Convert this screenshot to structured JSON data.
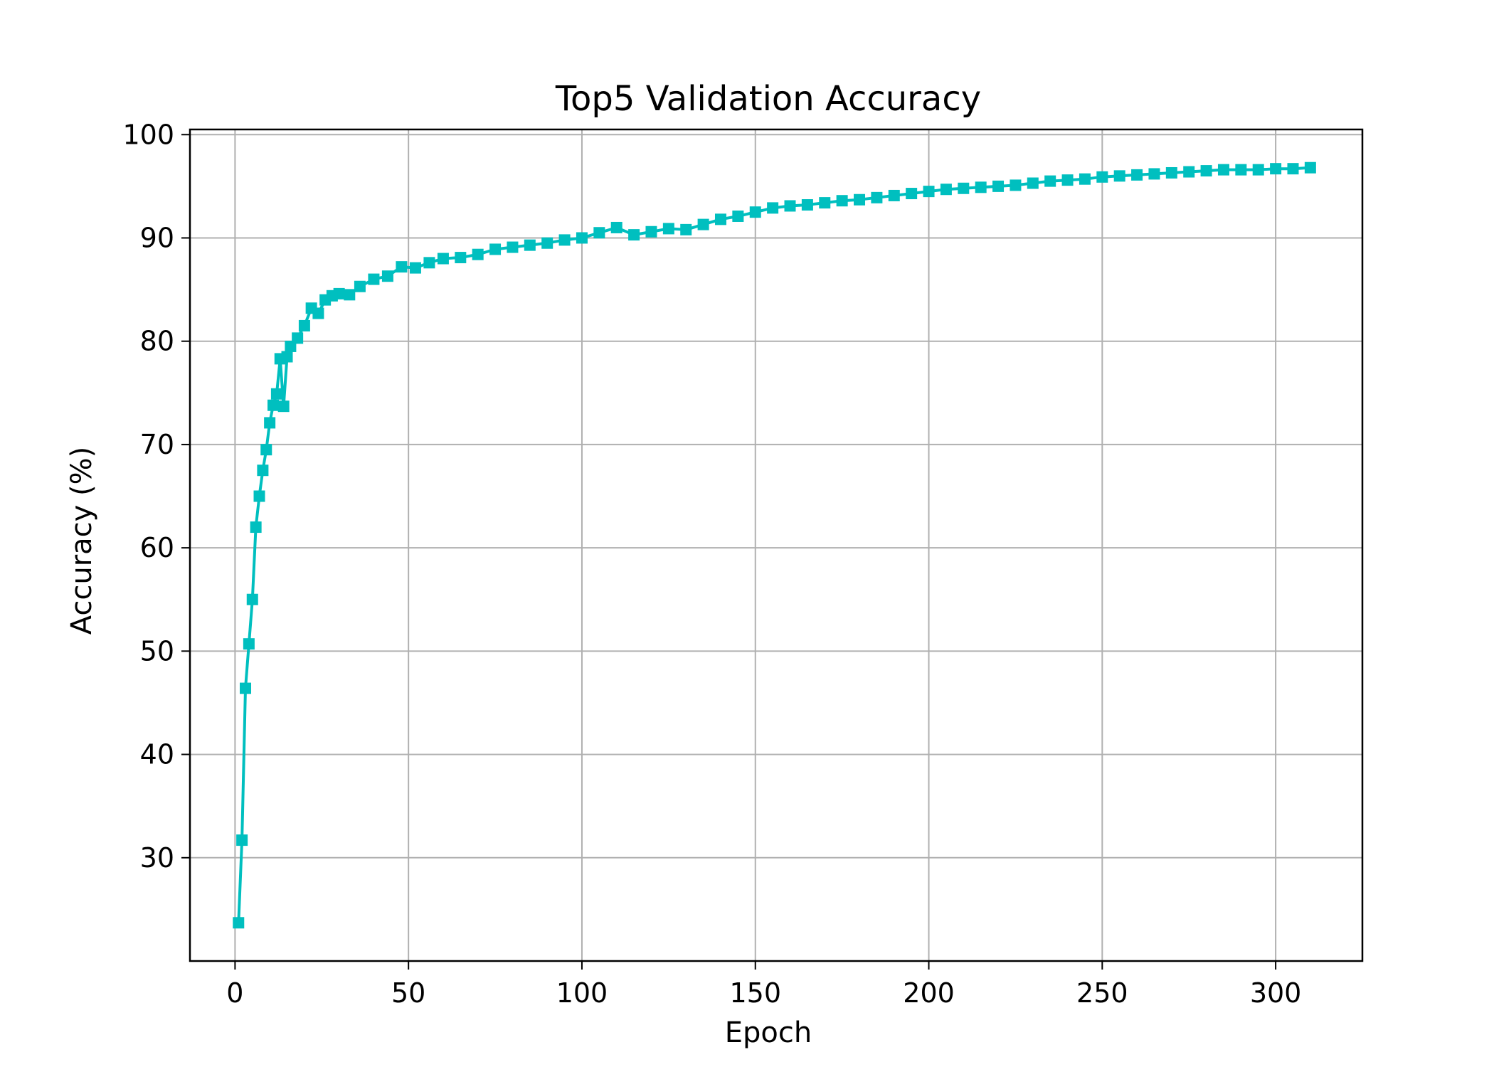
{
  "chart_data": {
    "type": "line",
    "title": "Top5 Validation Accuracy",
    "xlabel": "Epoch",
    "ylabel": "Accuracy (%)",
    "xlim": [
      -13,
      325
    ],
    "ylim": [
      20,
      100.5
    ],
    "xticks": [
      0,
      50,
      100,
      150,
      200,
      250,
      300
    ],
    "yticks": [
      30,
      40,
      50,
      60,
      70,
      80,
      90,
      100
    ],
    "grid": true,
    "legend": "none",
    "series_color": "#00BFBF",
    "marker": "square",
    "series": [
      {
        "x": [
          1,
          2,
          3,
          4,
          5,
          6,
          7,
          8,
          9,
          10,
          11,
          12,
          13,
          14,
          15,
          16,
          18,
          20,
          22,
          24,
          26,
          28,
          30,
          33,
          36,
          40,
          44,
          48,
          52,
          56,
          60,
          65,
          70,
          75,
          80,
          85,
          90,
          95,
          100,
          105,
          110,
          115,
          120,
          125,
          130,
          135,
          140,
          145,
          150,
          155,
          160,
          165,
          170,
          175,
          180,
          185,
          190,
          195,
          200,
          205,
          210,
          215,
          220,
          225,
          230,
          235,
          240,
          245,
          250,
          255,
          260,
          265,
          270,
          275,
          280,
          285,
          290,
          295,
          300,
          305,
          310
        ],
        "values": [
          23.7,
          31.7,
          46.4,
          50.7,
          55.0,
          62.0,
          65.0,
          67.5,
          69.5,
          72.1,
          73.8,
          74.9,
          78.3,
          73.7,
          78.5,
          79.5,
          80.3,
          81.5,
          83.2,
          82.7,
          84.0,
          84.4,
          84.6,
          84.5,
          85.3,
          86.0,
          86.3,
          87.2,
          87.1,
          87.6,
          88.0,
          88.1,
          88.4,
          88.9,
          89.1,
          89.3,
          89.5,
          89.8,
          90.0,
          90.5,
          91.0,
          90.3,
          90.6,
          90.9,
          90.8,
          91.3,
          91.8,
          92.1,
          92.5,
          92.9,
          93.1,
          93.2,
          93.4,
          93.6,
          93.7,
          93.9,
          94.1,
          94.3,
          94.5,
          94.7,
          94.8,
          94.9,
          95.0,
          95.1,
          95.3,
          95.5,
          95.6,
          95.7,
          95.9,
          96.0,
          96.1,
          96.2,
          96.3,
          96.4,
          96.5,
          96.6,
          96.6,
          96.6,
          96.7,
          96.7,
          96.8
        ]
      }
    ]
  }
}
